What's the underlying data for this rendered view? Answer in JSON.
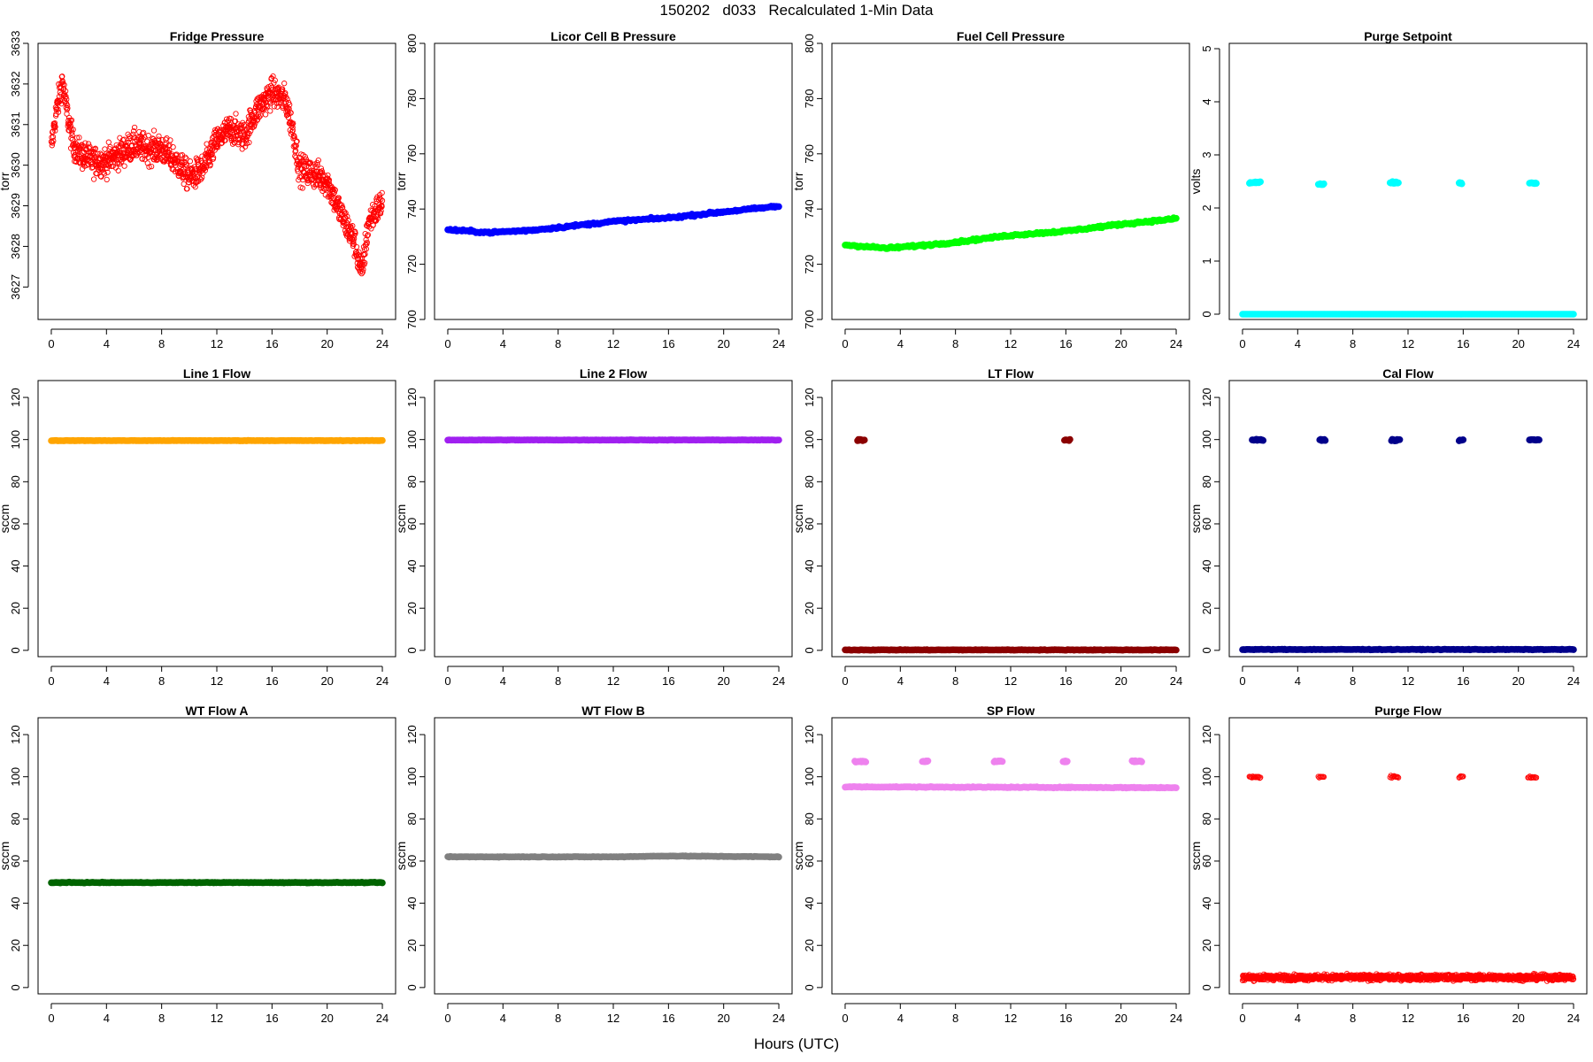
{
  "header": {
    "title": "150202   d033   Recalculated 1-Min Data"
  },
  "footer": {
    "xlabel": "Hours (UTC)"
  },
  "chart_data": [
    {
      "type": "scatter",
      "title": "Fridge Pressure",
      "ylabel": "torr",
      "xlim": [
        0,
        24
      ],
      "ylim": [
        3626.2,
        3633.0
      ],
      "xticks": [
        0,
        4,
        8,
        12,
        16,
        20,
        24
      ],
      "yticks": [
        3627,
        3628,
        3629,
        3630,
        3631,
        3632,
        3633
      ],
      "color": "#ff0000",
      "marker": "open-circle",
      "noise": 0.35,
      "series": [
        {
          "x": [
            0,
            0.3,
            0.6,
            0.8,
            1.0,
            1.3,
            1.6,
            2.0,
            3.0,
            4.0,
            5.0,
            6.0,
            7.0,
            8.0,
            9.0,
            10.0,
            11.0,
            12.0,
            13.0,
            14.0,
            14.5,
            15.0,
            16.0,
            17.0,
            17.5,
            18.0,
            19.0,
            20.0,
            21.0,
            22.0,
            22.5,
            23.0,
            24.0
          ],
          "y": [
            3630.4,
            3631.2,
            3631.7,
            3632.1,
            3631.6,
            3631.0,
            3630.5,
            3630.3,
            3630.1,
            3630.1,
            3630.3,
            3630.5,
            3630.4,
            3630.4,
            3630.1,
            3629.7,
            3629.9,
            3630.6,
            3630.9,
            3630.7,
            3631.1,
            3631.4,
            3631.8,
            3631.6,
            3630.9,
            3629.9,
            3629.8,
            3629.6,
            3628.8,
            3628.1,
            3627.3,
            3628.6,
            3629.1
          ]
        }
      ]
    },
    {
      "type": "scatter",
      "title": "Licor Cell B Pressure",
      "ylabel": "torr",
      "xlim": [
        0,
        24
      ],
      "ylim": [
        700,
        800
      ],
      "xticks": [
        0,
        4,
        8,
        12,
        16,
        20,
        24
      ],
      "yticks": [
        700,
        720,
        740,
        760,
        780,
        800
      ],
      "color": "#0000ff",
      "marker": "filled",
      "noise": 0.4,
      "series": [
        {
          "x": [
            0,
            3,
            6,
            8,
            12,
            16,
            20,
            24
          ],
          "y": [
            732.5,
            731.5,
            732.3,
            733.3,
            735.5,
            736.8,
            739.0,
            741.0
          ]
        }
      ]
    },
    {
      "type": "scatter",
      "title": "Fuel Cell Pressure",
      "ylabel": "torr",
      "xlim": [
        0,
        24
      ],
      "ylim": [
        700,
        800
      ],
      "xticks": [
        0,
        4,
        8,
        12,
        16,
        20,
        24
      ],
      "yticks": [
        700,
        720,
        740,
        760,
        780,
        800
      ],
      "color": "#00ff00",
      "marker": "filled",
      "noise": 0.4,
      "series": [
        {
          "x": [
            0,
            3,
            6,
            8,
            12,
            16,
            20,
            24
          ],
          "y": [
            727.0,
            725.8,
            727.0,
            728.0,
            730.5,
            732.0,
            734.5,
            736.5
          ]
        }
      ]
    },
    {
      "type": "scatter",
      "title": "Purge Setpoint",
      "ylabel": "volts",
      "xlim": [
        0,
        24
      ],
      "ylim": [
        -0.1,
        5.1
      ],
      "xticks": [
        0,
        4,
        8,
        12,
        16,
        20,
        24
      ],
      "yticks": [
        0,
        1,
        2,
        3,
        4,
        5
      ],
      "color": "#00ffff",
      "marker": "filled",
      "noise": 0.0,
      "series": [
        {
          "x": [
            0,
            24
          ],
          "y": [
            0.0,
            0.0
          ]
        }
      ],
      "bursts": [
        {
          "x0": 0.5,
          "x1": 1.3,
          "y": 2.48
        },
        {
          "x0": 5.5,
          "x1": 5.9,
          "y": 2.45
        },
        {
          "x0": 10.7,
          "x1": 11.3,
          "y": 2.48
        },
        {
          "x0": 15.7,
          "x1": 15.9,
          "y": 2.47
        },
        {
          "x0": 20.8,
          "x1": 21.3,
          "y": 2.47
        }
      ]
    },
    {
      "type": "scatter",
      "title": "Line 1 Flow",
      "ylabel": "sccm",
      "xlim": [
        0,
        24
      ],
      "ylim": [
        -3,
        128
      ],
      "xticks": [
        0,
        4,
        8,
        12,
        16,
        20,
        24
      ],
      "yticks": [
        0,
        20,
        40,
        60,
        80,
        100,
        120
      ],
      "color": "#ffa500",
      "marker": "filled",
      "noise": 0.1,
      "series": [
        {
          "x": [
            0,
            24
          ],
          "y": [
            99.5,
            99.5
          ]
        }
      ]
    },
    {
      "type": "scatter",
      "title": "Line 2 Flow",
      "ylabel": "sccm",
      "xlim": [
        0,
        24
      ],
      "ylim": [
        -3,
        128
      ],
      "xticks": [
        0,
        4,
        8,
        12,
        16,
        20,
        24
      ],
      "yticks": [
        0,
        20,
        40,
        60,
        80,
        100,
        120
      ],
      "color": "#a020f0",
      "marker": "filled",
      "noise": 0.1,
      "series": [
        {
          "x": [
            0,
            24
          ],
          "y": [
            99.8,
            99.8
          ]
        }
      ]
    },
    {
      "type": "scatter",
      "title": "LT Flow",
      "ylabel": "sccm",
      "xlim": [
        0,
        24
      ],
      "ylim": [
        -3,
        128
      ],
      "xticks": [
        0,
        4,
        8,
        12,
        16,
        20,
        24
      ],
      "yticks": [
        0,
        20,
        40,
        60,
        80,
        100,
        120
      ],
      "color": "#8b0000",
      "marker": "filled",
      "noise": 0.15,
      "series": [
        {
          "x": [
            0,
            24
          ],
          "y": [
            0.2,
            0.2
          ]
        }
      ],
      "bursts": [
        {
          "x0": 0.9,
          "x1": 1.4,
          "y": 99.8
        },
        {
          "x0": 15.9,
          "x1": 16.3,
          "y": 99.8
        }
      ]
    },
    {
      "type": "scatter",
      "title": "Cal Flow",
      "ylabel": "sccm",
      "xlim": [
        0,
        24
      ],
      "ylim": [
        -3,
        128
      ],
      "xticks": [
        0,
        4,
        8,
        12,
        16,
        20,
        24
      ],
      "yticks": [
        0,
        20,
        40,
        60,
        80,
        100,
        120
      ],
      "color": "#00008b",
      "marker": "filled",
      "noise": 0.15,
      "series": [
        {
          "x": [
            0,
            24
          ],
          "y": [
            0.4,
            0.4
          ]
        }
      ],
      "bursts": [
        {
          "x0": 0.7,
          "x1": 1.5,
          "y": 99.8
        },
        {
          "x0": 5.6,
          "x1": 6.0,
          "y": 99.8
        },
        {
          "x0": 10.8,
          "x1": 11.4,
          "y": 99.8
        },
        {
          "x0": 15.7,
          "x1": 16.0,
          "y": 99.8
        },
        {
          "x0": 20.8,
          "x1": 21.5,
          "y": 99.8
        }
      ]
    },
    {
      "type": "scatter",
      "title": "WT Flow A",
      "ylabel": "sccm",
      "xlim": [
        0,
        24
      ],
      "ylim": [
        -3,
        128
      ],
      "xticks": [
        0,
        4,
        8,
        12,
        16,
        20,
        24
      ],
      "yticks": [
        0,
        20,
        40,
        60,
        80,
        100,
        120
      ],
      "color": "#006400",
      "marker": "filled",
      "noise": 0.15,
      "series": [
        {
          "x": [
            0,
            24
          ],
          "y": [
            49.8,
            49.8
          ]
        }
      ]
    },
    {
      "type": "scatter",
      "title": "WT Flow B",
      "ylabel": "sccm",
      "xlim": [
        0,
        24
      ],
      "ylim": [
        -3,
        128
      ],
      "xticks": [
        0,
        4,
        8,
        12,
        16,
        20,
        24
      ],
      "yticks": [
        0,
        20,
        40,
        60,
        80,
        100,
        120
      ],
      "color": "#808080",
      "marker": "filled",
      "noise": 0.15,
      "series": [
        {
          "x": [
            0,
            12,
            16,
            24
          ],
          "y": [
            62.0,
            62.0,
            62.4,
            62.0
          ]
        }
      ]
    },
    {
      "type": "scatter",
      "title": "SP Flow",
      "ylabel": "sccm",
      "xlim": [
        0,
        24
      ],
      "ylim": [
        -3,
        128
      ],
      "xticks": [
        0,
        4,
        8,
        12,
        16,
        20,
        24
      ],
      "yticks": [
        0,
        20,
        40,
        60,
        80,
        100,
        120
      ],
      "color": "#ee82ee",
      "marker": "filled",
      "noise": 0.2,
      "series": [
        {
          "x": [
            0,
            12,
            24
          ],
          "y": [
            95.2,
            95.0,
            94.8
          ]
        }
      ],
      "bursts": [
        {
          "x0": 0.7,
          "x1": 1.5,
          "y": 107.3
        },
        {
          "x0": 5.6,
          "x1": 6.0,
          "y": 107.3
        },
        {
          "x0": 10.8,
          "x1": 11.4,
          "y": 107.3
        },
        {
          "x0": 15.8,
          "x1": 16.1,
          "y": 107.3
        },
        {
          "x0": 20.8,
          "x1": 21.5,
          "y": 107.3
        }
      ]
    },
    {
      "type": "scatter",
      "title": "Purge Flow",
      "ylabel": "sccm",
      "xlim": [
        0,
        24
      ],
      "ylim": [
        -3,
        128
      ],
      "xticks": [
        0,
        4,
        8,
        12,
        16,
        20,
        24
      ],
      "yticks": [
        0,
        20,
        40,
        60,
        80,
        100,
        120
      ],
      "color": "#ff0000",
      "marker": "open-circle",
      "noise": 1.3,
      "series": [
        {
          "x": [
            0,
            24
          ],
          "y": [
            4.8,
            4.8
          ]
        }
      ],
      "bursts": [
        {
          "x0": 0.5,
          "x1": 1.3,
          "y": 99.8
        },
        {
          "x0": 5.5,
          "x1": 5.9,
          "y": 100.0
        },
        {
          "x0": 10.7,
          "x1": 11.3,
          "y": 100.0
        },
        {
          "x0": 15.7,
          "x1": 16.0,
          "y": 100.0
        },
        {
          "x0": 20.7,
          "x1": 21.3,
          "y": 99.8
        }
      ]
    }
  ]
}
